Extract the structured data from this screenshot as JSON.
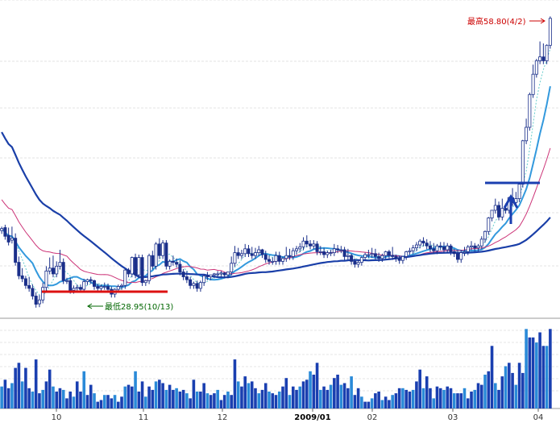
{
  "chart_data": {
    "type": "candlestick",
    "x_ticks": [
      "10",
      "11",
      "12",
      "2009/01",
      "02",
      "03",
      "04"
    ],
    "annotations": {
      "high_label": "最高58.80(4/2)",
      "low_label": "最低28.95(10/13)"
    },
    "price_range": [
      27.5,
      60.5
    ],
    "candles": [
      [
        36.6,
        37.0,
        36.8
      ],
      [
        36.9,
        37.2,
        36.0
      ],
      [
        36.1,
        36.9,
        35.4
      ],
      [
        35.6,
        37.0,
        35.8
      ],
      [
        35.8,
        36.3,
        33.3
      ],
      [
        33.3,
        33.9,
        31.9
      ],
      [
        31.9,
        32.7,
        31.6
      ],
      [
        31.6,
        31.9,
        30.9
      ],
      [
        30.9,
        31.8,
        30.6
      ],
      [
        30.6,
        31.0,
        29.8
      ],
      [
        29.8,
        30.2,
        28.95
      ],
      [
        29.0,
        29.9,
        29.4
      ],
      [
        29.4,
        31.2,
        30.7
      ],
      [
        30.7,
        32.9,
        32.4
      ],
      [
        32.4,
        33.8,
        32.7
      ],
      [
        32.7,
        34.0,
        32.1
      ],
      [
        32.1,
        33.4,
        32.9
      ],
      [
        32.9,
        34.6,
        33.3
      ],
      [
        33.3,
        33.7,
        31.4
      ],
      [
        31.4,
        31.7,
        31.4
      ],
      [
        31.4,
        31.7,
        30.4
      ],
      [
        30.4,
        30.9,
        30.6
      ],
      [
        30.6,
        31.0,
        30.7
      ],
      [
        30.7,
        31.0,
        30.5
      ],
      [
        30.5,
        31.6,
        31.3
      ],
      [
        31.3,
        31.6,
        31.5
      ],
      [
        31.5,
        31.8,
        31.4
      ],
      [
        31.4,
        31.5,
        30.8
      ],
      [
        30.8,
        31.1,
        30.6
      ],
      [
        30.6,
        31.0,
        30.8
      ],
      [
        30.8,
        31.2,
        30.8
      ],
      [
        30.8,
        31.1,
        30.5
      ],
      [
        30.5,
        30.8,
        30.0
      ],
      [
        30.0,
        30.6,
        30.5
      ],
      [
        30.5,
        31.0,
        30.8
      ],
      [
        30.8,
        31.1,
        30.9
      ],
      [
        30.9,
        32.6,
        32.5
      ],
      [
        32.5,
        32.7,
        32.1
      ],
      [
        32.1,
        33.9,
        33.8
      ],
      [
        33.8,
        34.2,
        32.0
      ],
      [
        32.0,
        34.1,
        33.8
      ],
      [
        33.8,
        34.1,
        31.2
      ],
      [
        31.2,
        31.5,
        31.4
      ],
      [
        31.4,
        34.2,
        34.0
      ],
      [
        34.0,
        34.5,
        32.9
      ],
      [
        32.9,
        35.4,
        35.2
      ],
      [
        35.2,
        35.8,
        34.0
      ],
      [
        34.0,
        35.6,
        35.3
      ],
      [
        35.3,
        35.6,
        32.9
      ],
      [
        32.9,
        33.6,
        33.4
      ],
      [
        33.4,
        34.0,
        33.3
      ],
      [
        33.3,
        33.7,
        33.1
      ],
      [
        33.1,
        33.5,
        32.3
      ],
      [
        32.3,
        32.6,
        31.8
      ],
      [
        31.8,
        32.4,
        31.5
      ],
      [
        31.5,
        31.8,
        30.9
      ],
      [
        30.9,
        31.3,
        31.1
      ],
      [
        31.1,
        31.4,
        30.6
      ],
      [
        30.6,
        31.4,
        31.2
      ],
      [
        31.2,
        32.0,
        31.9
      ],
      [
        31.9,
        32.3,
        31.8
      ],
      [
        31.8,
        32.0,
        32.0
      ],
      [
        32.0,
        32.2,
        32.1
      ],
      [
        32.1,
        32.4,
        32.1
      ],
      [
        32.1,
        32.4,
        32.2
      ],
      [
        32.2,
        32.3,
        32.0
      ],
      [
        32.0,
        32.2,
        32.3
      ],
      [
        32.3,
        33.9,
        33.2
      ],
      [
        33.2,
        35.0,
        34.3
      ],
      [
        34.3,
        34.8,
        34.0
      ],
      [
        34.0,
        34.6,
        34.2
      ],
      [
        34.2,
        35.2,
        34.7
      ],
      [
        34.7,
        35.1,
        34.2
      ],
      [
        34.2,
        34.9,
        34.0
      ],
      [
        34.0,
        34.8,
        34.3
      ],
      [
        34.3,
        35.0,
        34.6
      ],
      [
        34.6,
        34.7,
        34.1
      ],
      [
        34.1,
        34.5,
        33.6
      ],
      [
        33.6,
        34.0,
        33.4
      ],
      [
        33.4,
        33.8,
        33.4
      ],
      [
        33.4,
        34.4,
        34.0
      ],
      [
        34.0,
        34.4,
        33.4
      ],
      [
        33.4,
        33.9,
        33.7
      ],
      [
        33.7,
        34.9,
        34.0
      ],
      [
        34.0,
        34.7,
        33.9
      ],
      [
        33.9,
        34.8,
        34.5
      ],
      [
        34.5,
        35.0,
        34.7
      ],
      [
        34.7,
        35.3,
        34.9
      ],
      [
        34.9,
        35.9,
        35.5
      ],
      [
        35.5,
        36.1,
        35.2
      ],
      [
        35.2,
        35.6,
        35.0
      ],
      [
        35.0,
        35.6,
        35.2
      ],
      [
        35.2,
        35.5,
        34.4
      ],
      [
        34.4,
        35.0,
        34.4
      ],
      [
        34.4,
        34.8,
        34.1
      ],
      [
        34.1,
        34.5,
        34.3
      ],
      [
        34.3,
        34.6,
        34.3
      ],
      [
        34.3,
        35.2,
        34.7
      ],
      [
        34.7,
        35.1,
        34.6
      ],
      [
        34.6,
        35.0,
        34.6
      ],
      [
        34.6,
        34.9,
        33.9
      ],
      [
        33.9,
        34.7,
        34.0
      ],
      [
        34.0,
        34.2,
        33.4
      ],
      [
        33.4,
        33.7,
        33.1
      ],
      [
        33.1,
        33.6,
        33.3
      ],
      [
        33.3,
        33.9,
        33.8
      ],
      [
        33.8,
        34.3,
        34.1
      ],
      [
        34.1,
        34.6,
        34.1
      ],
      [
        34.1,
        34.8,
        34.2
      ],
      [
        34.2,
        34.7,
        33.9
      ],
      [
        33.9,
        34.3,
        33.7
      ],
      [
        33.7,
        34.2,
        34.0
      ],
      [
        34.0,
        34.5,
        34.4
      ],
      [
        34.4,
        34.6,
        34.0
      ],
      [
        34.0,
        34.9,
        33.9
      ],
      [
        33.9,
        34.1,
        33.7
      ],
      [
        33.7,
        34.0,
        33.5
      ],
      [
        33.5,
        33.8,
        33.9
      ],
      [
        33.9,
        34.5,
        34.4
      ],
      [
        34.4,
        34.8,
        34.5
      ],
      [
        34.5,
        35.1,
        34.8
      ],
      [
        34.8,
        35.4,
        35.1
      ],
      [
        35.1,
        35.7,
        35.5
      ],
      [
        35.5,
        35.9,
        35.3
      ],
      [
        35.3,
        35.7,
        35.0
      ],
      [
        35.0,
        35.5,
        34.7
      ],
      [
        34.7,
        35.3,
        34.5
      ],
      [
        34.5,
        35.2,
        35.0
      ],
      [
        35.0,
        35.4,
        34.9
      ],
      [
        34.9,
        35.4,
        34.6
      ],
      [
        34.6,
        35.3,
        35.0
      ],
      [
        35.0,
        35.2,
        34.4
      ],
      [
        34.4,
        34.7,
        34.2
      ],
      [
        34.2,
        34.6,
        33.6
      ],
      [
        33.6,
        34.6,
        34.3
      ],
      [
        34.3,
        34.9,
        34.4
      ],
      [
        34.4,
        35.1,
        34.9
      ],
      [
        34.9,
        35.5,
        35.0
      ],
      [
        35.0,
        35.3,
        34.8
      ],
      [
        34.8,
        35.2,
        35.0
      ],
      [
        35.0,
        36.0,
        35.7
      ],
      [
        35.7,
        36.6,
        36.5
      ],
      [
        36.5,
        38.0,
        37.9
      ],
      [
        37.9,
        38.2,
        38.7
      ],
      [
        38.7,
        39.9,
        39.2
      ],
      [
        39.2,
        39.6,
        38.0
      ],
      [
        38.0,
        39.9,
        38.9
      ],
      [
        38.9,
        39.4,
        38.7
      ],
      [
        38.7,
        40.1,
        40.0
      ],
      [
        40.0,
        41.0,
        39.5
      ],
      [
        39.5,
        40.6,
        39.9
      ],
      [
        39.9,
        41.6,
        41.4
      ],
      [
        41.4,
        46.0,
        45.9
      ],
      [
        45.9,
        48.2,
        47.3
      ],
      [
        47.3,
        50.9,
        50.7
      ],
      [
        50.7,
        53.8,
        52.8
      ],
      [
        52.8,
        54.4,
        54.2
      ],
      [
        54.2,
        56.2,
        54.6
      ],
      [
        54.6,
        56.0,
        54.2
      ],
      [
        54.2,
        55.9,
        55.8
      ],
      [
        55.8,
        58.8,
        58.6
      ]
    ],
    "volume": [
      1.3,
      1.7,
      1.2,
      1.5,
      2.4,
      2.7,
      1.6,
      2.4,
      1.2,
      1.0,
      2.9,
      0.9,
      1.1,
      1.6,
      2.3,
      1.3,
      1.0,
      1.2,
      1.1,
      0.6,
      1.0,
      0.7,
      1.6,
      1.0,
      2.2,
      0.8,
      1.4,
      0.9,
      0.4,
      0.5,
      0.8,
      0.8,
      0.6,
      0.8,
      0.4,
      0.7,
      1.3,
      1.4,
      1.3,
      2.2,
      1.0,
      1.6,
      0.7,
      1.3,
      1.1,
      1.6,
      1.7,
      1.5,
      1.1,
      1.4,
      1.1,
      1.2,
      1.0,
      1.1,
      0.9,
      0.6,
      1.7,
      1.0,
      1.0,
      1.5,
      0.9,
      0.8,
      0.9,
      1.1,
      0.5,
      0.8,
      1.0,
      0.8,
      2.9,
      1.6,
      1.3,
      1.9,
      1.5,
      1.6,
      1.2,
      0.9,
      1.1,
      1.5,
      1.0,
      0.9,
      0.8,
      1.0,
      1.3,
      1.8,
      0.8,
      1.3,
      1.1,
      1.3,
      1.6,
      1.7,
      2.2,
      2.0,
      2.7,
      1.1,
      1.3,
      1.1,
      1.4,
      1.8,
      2.0,
      1.4,
      1.5,
      1.2,
      1.9,
      0.8,
      1.2,
      0.7,
      0.4,
      0.4,
      0.6,
      0.9,
      1.0,
      0.5,
      0.7,
      0.5,
      0.8,
      0.9,
      1.2,
      1.2,
      1.1,
      1.0,
      1.1,
      1.6,
      2.3,
      1.2,
      1.9,
      1.2,
      0.6,
      1.3,
      1.2,
      1.1,
      1.3,
      1.2,
      0.9,
      0.9,
      0.9,
      1.2,
      0.6,
      1.0,
      1.1,
      1.5,
      1.4,
      2.0,
      2.2,
      3.7,
      1.5,
      1.1,
      1.9,
      2.5,
      2.7,
      2.1,
      1.4,
      2.7,
      2.1,
      4.7,
      4.2,
      4.2,
      3.9,
      4.5,
      3.7,
      3.7,
      4.7
    ],
    "volume_max": 5.0
  }
}
